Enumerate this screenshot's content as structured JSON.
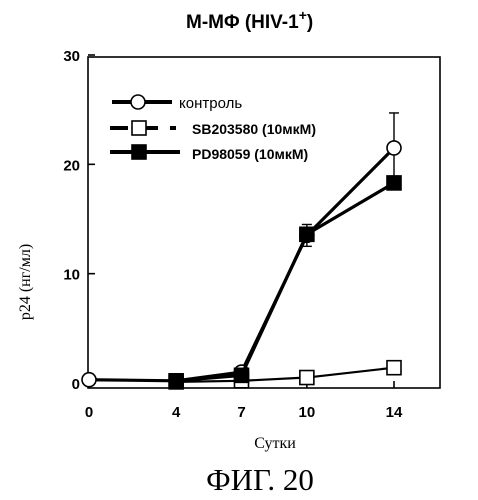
{
  "chart_data": {
    "type": "line",
    "title": "M-MΦ (HIV-1",
    "title_superscript": "+",
    "title_close": ")",
    "xlabel": "Сутки",
    "ylabel": "p24 (нг/мл)",
    "x": [
      0,
      4,
      7,
      10,
      14
    ],
    "xticks": [
      "0",
      "4",
      "7",
      "10",
      "14"
    ],
    "yticks": [
      "0",
      "10",
      "20",
      "30"
    ],
    "xlim": [
      0,
      14
    ],
    "ylim": [
      0,
      30
    ],
    "grid": false,
    "legend_position": "top-left",
    "series": [
      {
        "name": "контроль",
        "marker": "open-circle",
        "x": [
          0,
          4,
          7,
          10,
          14
        ],
        "values": [
          0.3,
          0.2,
          1.0,
          13.5,
          21.5
        ],
        "errors": [
          0,
          0,
          0,
          1.0,
          3.2
        ]
      },
      {
        "name": "SB203580 (10мкМ)",
        "marker": "open-square",
        "x": [
          4,
          7,
          10,
          14
        ],
        "values": [
          0.1,
          0.2,
          0.5,
          1.4
        ],
        "errors": [
          0,
          0,
          0,
          0
        ]
      },
      {
        "name": "PD98059 (10мкМ)",
        "marker": "filled-square",
        "x": [
          4,
          7,
          10,
          14
        ],
        "values": [
          0.2,
          0.7,
          13.6,
          18.3
        ],
        "errors": [
          0,
          0,
          0,
          0
        ]
      }
    ]
  },
  "figure_label": "ФИГ. 20"
}
